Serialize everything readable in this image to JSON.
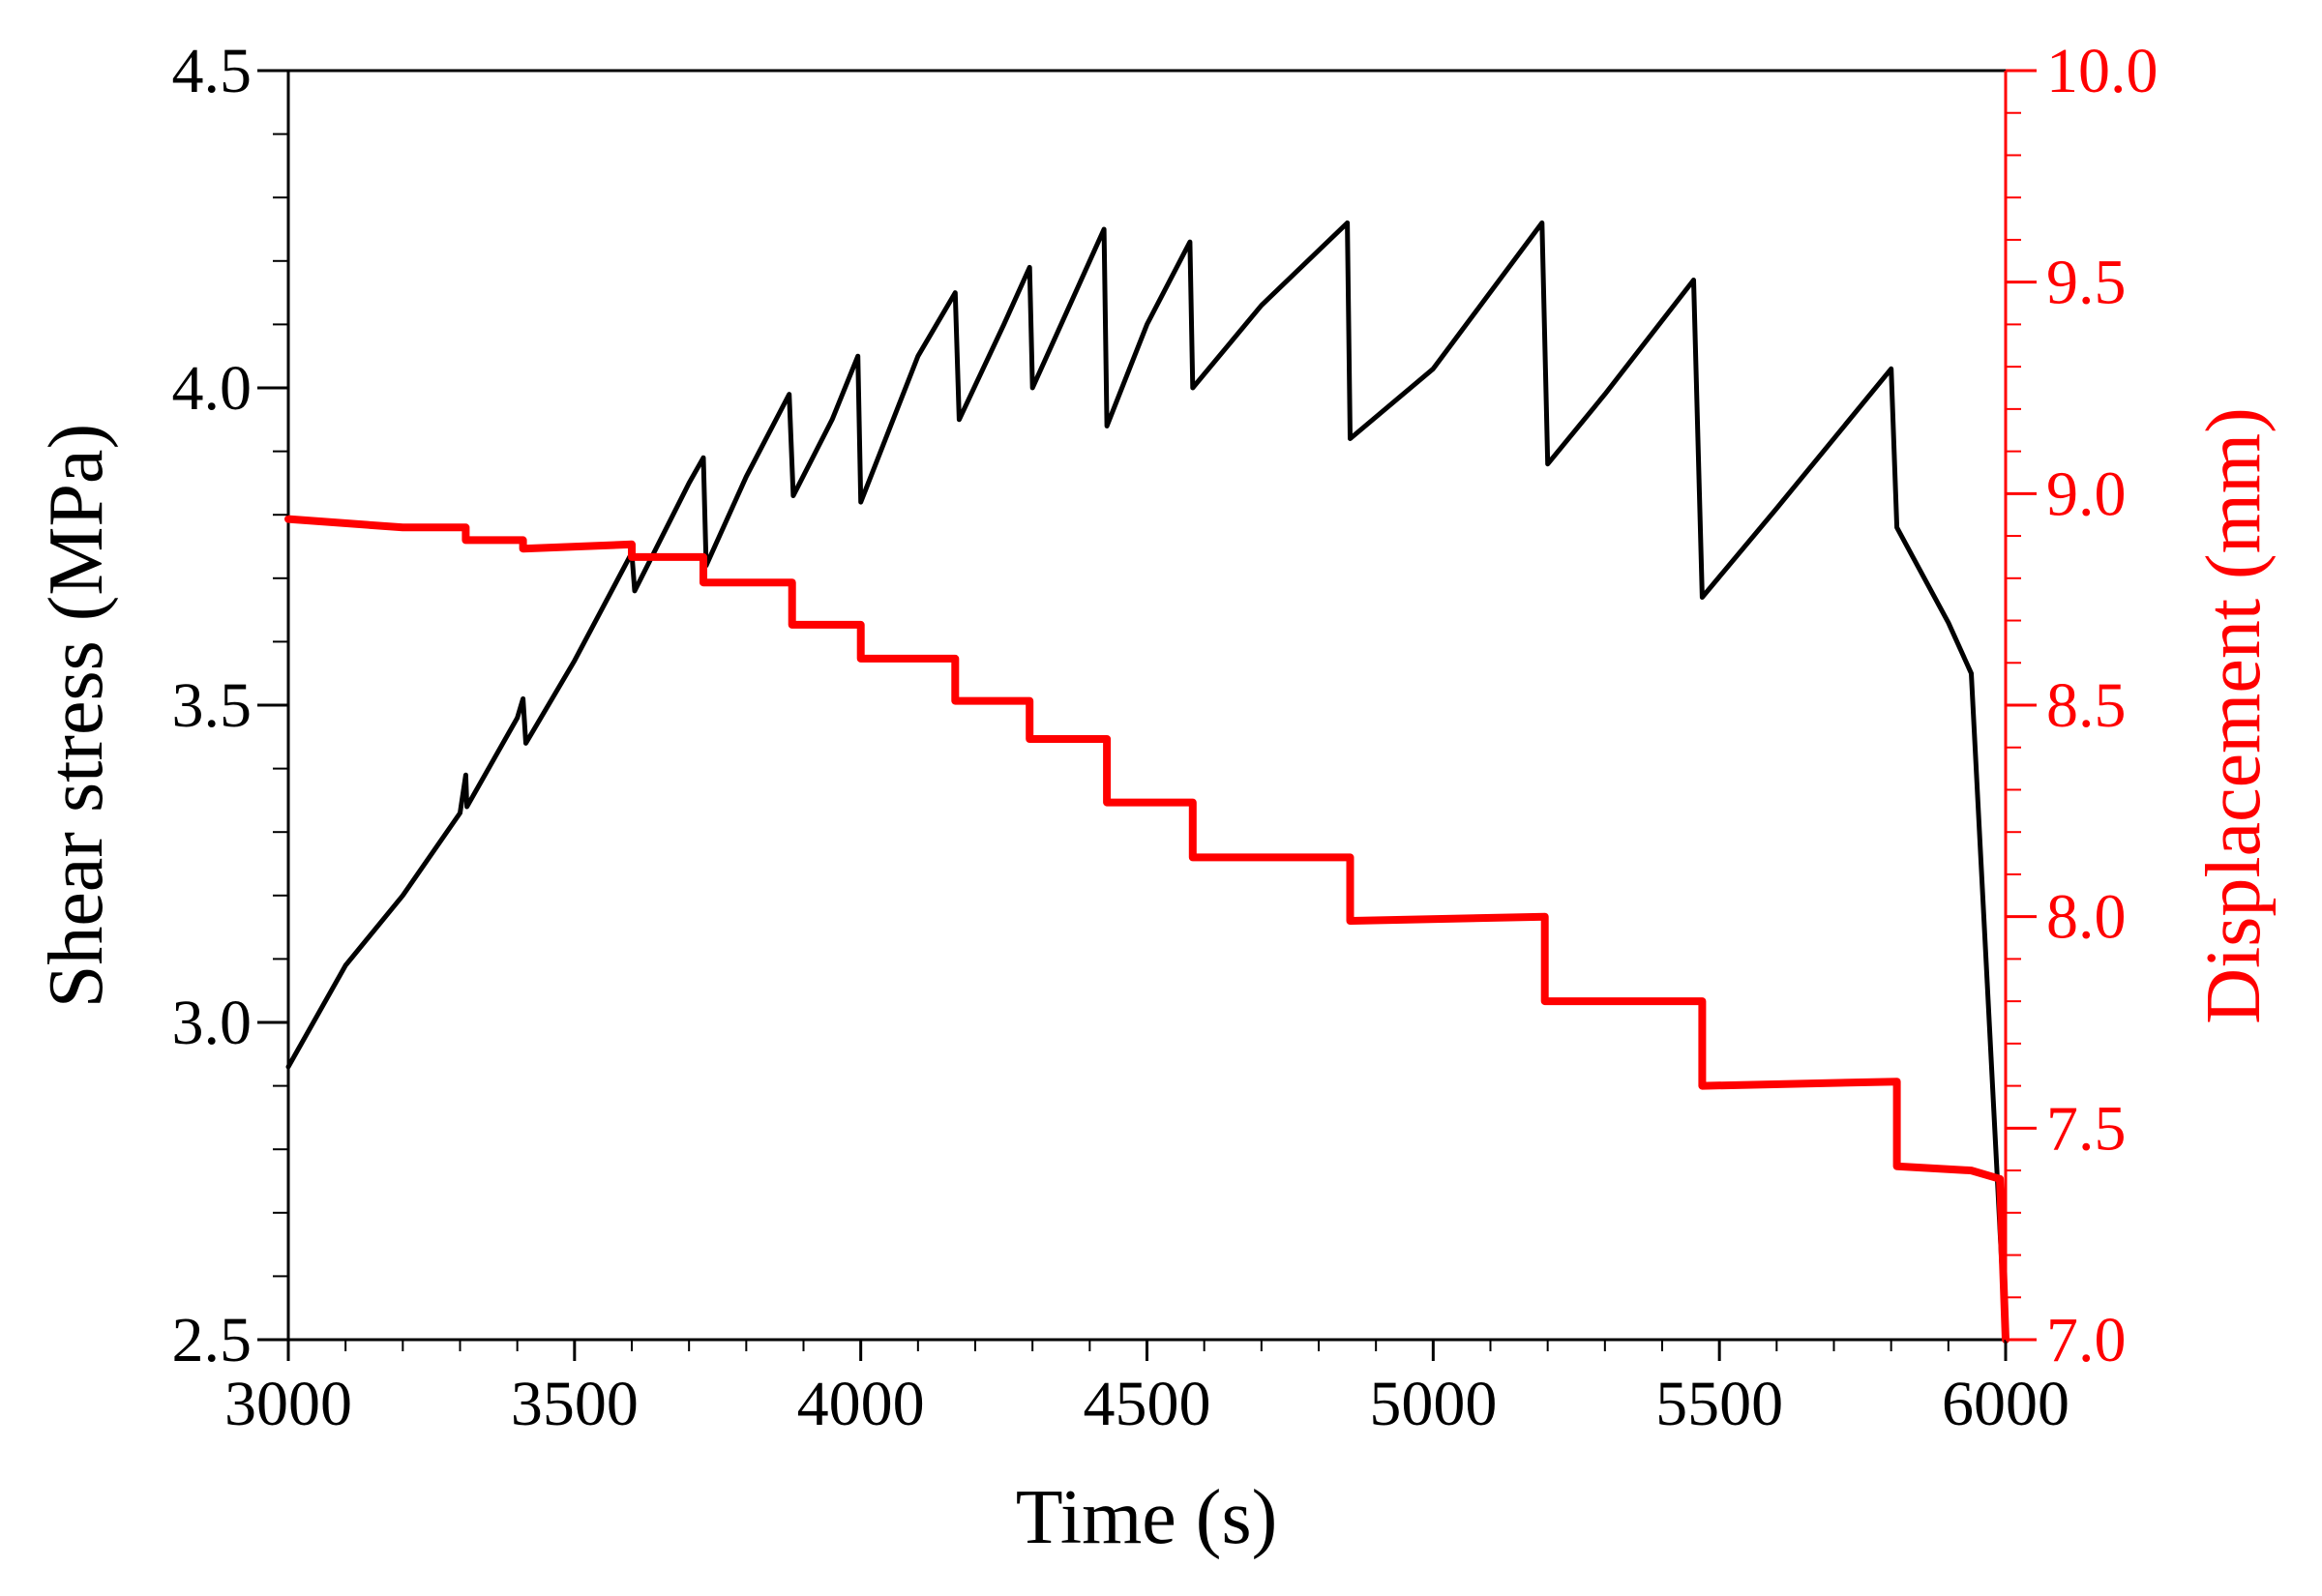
{
  "chart_data": {
    "type": "line",
    "xlabel": "Time (s)",
    "ylabel_left": "Shear stress (MPa)",
    "ylabel_right": "Displacement (mm)",
    "xlim": [
      3000,
      6000
    ],
    "ylim_left": [
      2.5,
      4.5
    ],
    "ylim_right": [
      7.0,
      10.0
    ],
    "x_ticks": [
      3000,
      3500,
      4000,
      4500,
      5000,
      5500,
      6000
    ],
    "x_tick_labels": [
      "3000",
      "3500",
      "4000",
      "4500",
      "5000",
      "5500",
      "6000"
    ],
    "y_left_ticks": [
      2.5,
      3.0,
      3.5,
      4.0,
      4.5
    ],
    "y_left_tick_labels": [
      "2.5",
      "3.0",
      "3.5",
      "4.0",
      "4.5"
    ],
    "y_right_ticks": [
      7.0,
      7.5,
      8.0,
      8.5,
      9.0,
      9.5,
      10.0
    ],
    "y_right_tick_labels": [
      "7.0",
      "7.5",
      "8.0",
      "8.5",
      "9.0",
      "9.5",
      "10.0"
    ],
    "grid": false,
    "colors": {
      "stress": "#000000",
      "displacement": "#ff0000",
      "left_axis": "#000000",
      "right_axis": "#ff0000"
    },
    "series": [
      {
        "axis": "left",
        "color": "#000000",
        "points": [
          [
            3000,
            2.93
          ],
          [
            3100,
            3.09
          ],
          [
            3200,
            3.2
          ],
          [
            3300,
            3.33
          ],
          [
            3310,
            3.39
          ],
          [
            3312,
            3.34
          ],
          [
            3400,
            3.48
          ],
          [
            3410,
            3.51
          ],
          [
            3415,
            3.44
          ],
          [
            3500,
            3.57
          ],
          [
            3600,
            3.74
          ],
          [
            3605,
            3.68
          ],
          [
            3700,
            3.85
          ],
          [
            3725,
            3.89
          ],
          [
            3730,
            3.72
          ],
          [
            3800,
            3.86
          ],
          [
            3875,
            3.99
          ],
          [
            3882,
            3.83
          ],
          [
            3950,
            3.95
          ],
          [
            3995,
            4.05
          ],
          [
            4000,
            3.82
          ],
          [
            4100,
            4.05
          ],
          [
            4165,
            4.15
          ],
          [
            4172,
            3.95
          ],
          [
            4250,
            4.1
          ],
          [
            4295,
            4.19
          ],
          [
            4300,
            4.0
          ],
          [
            4310,
            4.02
          ],
          [
            4425,
            4.25
          ],
          [
            4430,
            3.94
          ],
          [
            4500,
            4.1
          ],
          [
            4575,
            4.23
          ],
          [
            4580,
            4.0
          ],
          [
            4700,
            4.13
          ],
          [
            4850,
            4.26
          ],
          [
            4855,
            3.92
          ],
          [
            5000,
            4.03
          ],
          [
            5190,
            4.26
          ],
          [
            5200,
            3.88
          ],
          [
            5300,
            3.99
          ],
          [
            5455,
            4.17
          ],
          [
            5470,
            3.67
          ],
          [
            5600,
            3.81
          ],
          [
            5800,
            4.03
          ],
          [
            5810,
            3.78
          ],
          [
            5900,
            3.63
          ],
          [
            5940,
            3.55
          ],
          [
            6000,
            2.5
          ]
        ]
      },
      {
        "axis": "right",
        "color": "#ff0000",
        "points": [
          [
            3000,
            8.94
          ],
          [
            3200,
            8.92
          ],
          [
            3310,
            8.92
          ],
          [
            3310,
            8.89
          ],
          [
            3410,
            8.89
          ],
          [
            3410,
            8.87
          ],
          [
            3600,
            8.88
          ],
          [
            3600,
            8.85
          ],
          [
            3725,
            8.85
          ],
          [
            3725,
            8.79
          ],
          [
            3880,
            8.79
          ],
          [
            3880,
            8.69
          ],
          [
            4000,
            8.69
          ],
          [
            4000,
            8.61
          ],
          [
            4165,
            8.61
          ],
          [
            4165,
            8.51
          ],
          [
            4295,
            8.51
          ],
          [
            4295,
            8.42
          ],
          [
            4430,
            8.42
          ],
          [
            4430,
            8.27
          ],
          [
            4580,
            8.27
          ],
          [
            4580,
            8.14
          ],
          [
            4855,
            8.14
          ],
          [
            4855,
            7.99
          ],
          [
            5195,
            8.0
          ],
          [
            5195,
            7.8
          ],
          [
            5470,
            7.8
          ],
          [
            5470,
            7.6
          ],
          [
            5810,
            7.61
          ],
          [
            5810,
            7.41
          ],
          [
            5940,
            7.4
          ],
          [
            5990,
            7.38
          ],
          [
            6000,
            7.0
          ]
        ]
      }
    ]
  }
}
